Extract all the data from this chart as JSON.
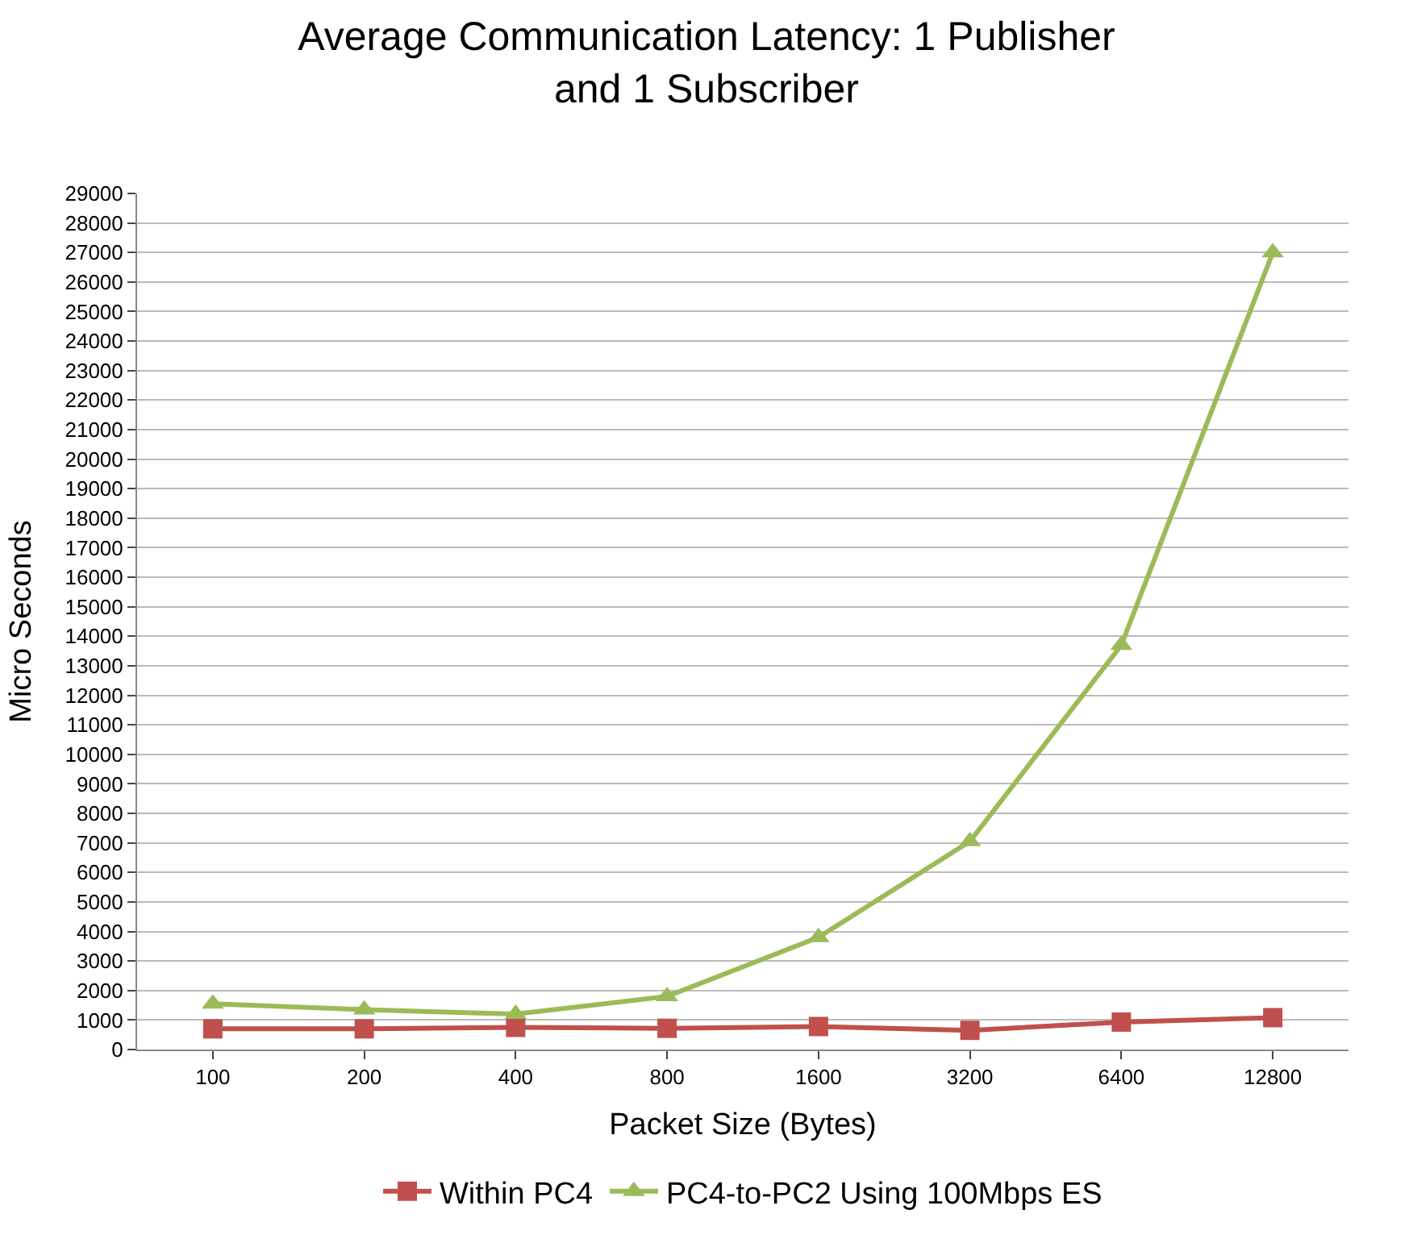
{
  "chart_data": {
    "type": "line",
    "title": "Average Communication Latency: 1 Publisher and 1 Subscriber",
    "xlabel": "Packet Size (Bytes)",
    "ylabel": "Micro Seconds",
    "categories": [
      "100",
      "200",
      "400",
      "800",
      "1600",
      "3200",
      "6400",
      "12800"
    ],
    "series": [
      {
        "name": "Within PC4",
        "color": "#c0504d",
        "marker": "square",
        "values": [
          700,
          700,
          750,
          720,
          780,
          650,
          930,
          1080
        ]
      },
      {
        "name": "PC4-to-PC2 Using 100Mbps ES",
        "color": "#9bbb59",
        "marker": "triangle",
        "values": [
          1550,
          1350,
          1200,
          1800,
          3800,
          7050,
          13700,
          27000
        ]
      }
    ],
    "ylim": [
      0,
      29000
    ],
    "yticks": [
      0,
      1000,
      2000,
      3000,
      4000,
      5000,
      6000,
      7000,
      8000,
      9000,
      10000,
      11000,
      12000,
      13000,
      14000,
      15000,
      16000,
      17000,
      18000,
      19000,
      20000,
      21000,
      22000,
      23000,
      24000,
      25000,
      26000,
      27000,
      28000,
      29000
    ],
    "grid": "y",
    "legend": "bottom",
    "line_style": "solid"
  }
}
